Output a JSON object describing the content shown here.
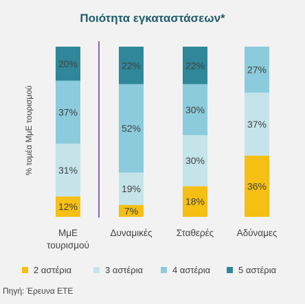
{
  "chart_data": {
    "type": "bar",
    "stacked": true,
    "title": "Ποιότητα εγκαταστάσεων*",
    "ylabel": "% τομέα ΜμΕ τουρισμού",
    "categories": [
      "ΜμΕ\nτουρισμού",
      "Δυναμικές",
      "Σταθερές",
      "Αδύναμες"
    ],
    "series": [
      {
        "name": "2 αστέρια",
        "color": "#f5bf14",
        "values": [
          12,
          7,
          18,
          36
        ],
        "labels": [
          "12%",
          "7%",
          "18%",
          "36%"
        ]
      },
      {
        "name": "3 αστέρια",
        "color": "#c5e4ea",
        "values": [
          31,
          19,
          30,
          37
        ],
        "labels": [
          "31%",
          "19%",
          "30%",
          "37%"
        ]
      },
      {
        "name": "4 αστέρια",
        "color": "#8ccbdc",
        "values": [
          37,
          52,
          30,
          27
        ],
        "labels": [
          "37%",
          "52%",
          "30%",
          "27%"
        ]
      },
      {
        "name": "5 αστέρια",
        "color": "#2f8799",
        "values": [
          20,
          22,
          22,
          0
        ],
        "labels": [
          "20%",
          "22%",
          "22%",
          ""
        ]
      }
    ],
    "ylim": [
      0,
      100
    ],
    "legend_position": "bottom"
  },
  "source": "Πηγή: Έρευνα ΕΤΕ"
}
